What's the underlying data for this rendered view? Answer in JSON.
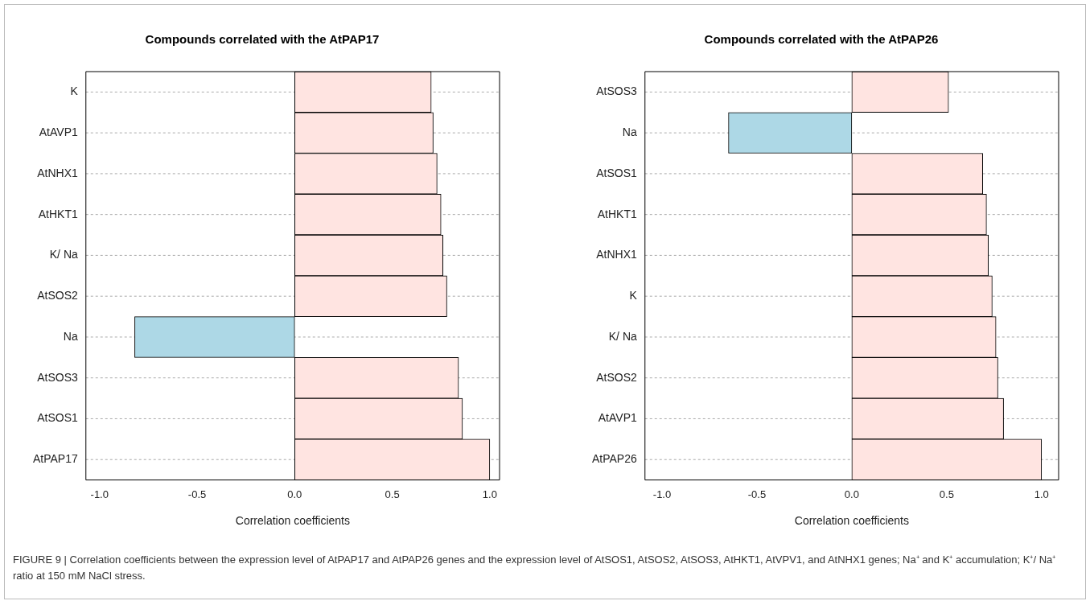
{
  "chart_data": [
    {
      "type": "bar",
      "orientation": "horizontal",
      "title": "Compounds correlated with the AtPAP17",
      "xlabel": "Correlation coefficients",
      "categories": [
        "K",
        "AtAVP1",
        "AtNHX1",
        "AtHKT1",
        "K/ Na",
        "AtSOS2",
        "Na",
        "AtSOS3",
        "AtSOS1",
        "AtPAP17"
      ],
      "values": [
        0.7,
        0.71,
        0.73,
        0.75,
        0.76,
        0.78,
        -0.82,
        0.84,
        0.86,
        1.0
      ],
      "colors": [
        "#ffe4e1",
        "#ffe4e1",
        "#ffe4e1",
        "#ffe4e1",
        "#ffe4e1",
        "#ffe4e1",
        "#add8e6",
        "#ffe4e1",
        "#ffe4e1",
        "#ffe4e1"
      ],
      "xlim": [
        -1.07,
        1.05
      ],
      "xticks": [
        {
          "value": -1,
          "label": "-1.0"
        },
        {
          "value": -0.5,
          "label": "-0.5"
        },
        {
          "value": 0,
          "label": "0.0"
        },
        {
          "value": 0.5,
          "label": "0.5"
        },
        {
          "value": 1,
          "label": "1.0"
        }
      ],
      "grid": "y",
      "legend": false,
      "annotations": [
        "FIGURE 9 | Correlation coefficients between the expression level of AtPAP17 and AtPAP26 genes and the expression level of AtSOS1, AtSOS2, AtSOS3, AtHKT1, AtVPV1, and AtNHX1 genes; Na⁺ and K⁺ accumulation; K⁺/ Na⁺ ratio at 150 mM NaCl stress."
      ]
    },
    {
      "type": "bar",
      "orientation": "horizontal",
      "title": "Compounds correlated with the AtPAP26",
      "xlabel": "Correlation coefficients",
      "categories": [
        "AtSOS3",
        "Na",
        "AtSOS1",
        "AtHKT1",
        "AtNHX1",
        "K",
        "K/ Na",
        "AtSOS2",
        "AtAVP1",
        "AtPAP26"
      ],
      "values": [
        0.51,
        -0.65,
        0.69,
        0.71,
        0.72,
        0.74,
        0.76,
        0.77,
        0.8,
        1.0
      ],
      "colors": [
        "#ffe4e1",
        "#add8e6",
        "#ffe4e1",
        "#ffe4e1",
        "#ffe4e1",
        "#ffe4e1",
        "#ffe4e1",
        "#ffe4e1",
        "#ffe4e1",
        "#ffe4e1"
      ],
      "xlim": [
        -1.09,
        1.09
      ],
      "xticks": [
        {
          "value": -1,
          "label": "-1.0"
        },
        {
          "value": -0.5,
          "label": "-0.5"
        },
        {
          "value": 0,
          "label": "0.0"
        },
        {
          "value": 0.5,
          "label": "0.5"
        },
        {
          "value": 1,
          "label": "1.0"
        }
      ],
      "grid": "y",
      "legend": false
    }
  ]
}
